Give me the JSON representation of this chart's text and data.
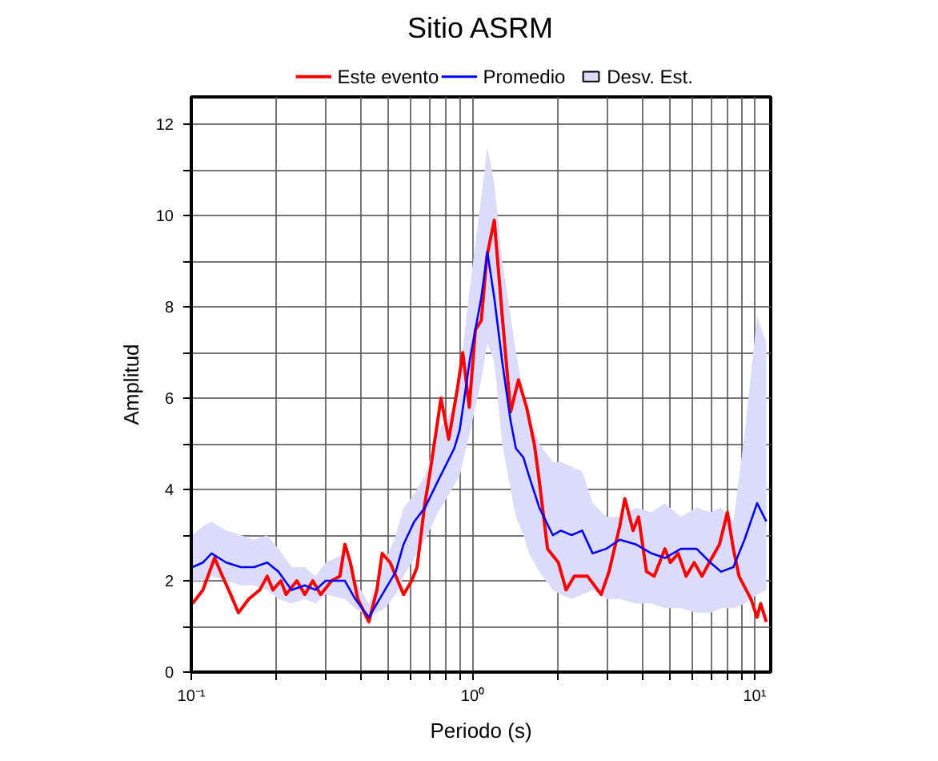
{
  "chart_data": {
    "type": "line",
    "title": "Sitio ASRM",
    "xlabel": "Periodo (s)",
    "ylabel": "Amplitud",
    "log": "x",
    "grid": true,
    "legend": "top",
    "line_style": "solid",
    "marker": "none",
    "xlim": [
      0.1,
      11.4
    ],
    "ylim": [
      0,
      12.6
    ],
    "xticks": [
      {
        "value": 0.1,
        "label": "10⁻¹"
      },
      {
        "value": 0.2,
        "label": null
      },
      {
        "value": 0.3,
        "label": null
      },
      {
        "value": 0.4,
        "label": null
      },
      {
        "value": 0.5,
        "label": null
      },
      {
        "value": 0.6,
        "label": null
      },
      {
        "value": 0.7,
        "label": null
      },
      {
        "value": 0.8,
        "label": null
      },
      {
        "value": 0.9,
        "label": null
      },
      {
        "value": 1,
        "label": "10⁰"
      },
      {
        "value": 2,
        "label": null
      },
      {
        "value": 3,
        "label": null
      },
      {
        "value": 4,
        "label": null
      },
      {
        "value": 5,
        "label": null
      },
      {
        "value": 6,
        "label": null
      },
      {
        "value": 7,
        "label": null
      },
      {
        "value": 8,
        "label": null
      },
      {
        "value": 9,
        "label": null
      },
      {
        "value": 10,
        "label": "10¹"
      }
    ],
    "yticks": [
      0,
      {
        "value": 1,
        "label": null
      },
      2,
      {
        "value": 3,
        "label": null
      },
      4,
      {
        "value": 5,
        "label": null
      },
      6,
      {
        "value": 7,
        "label": null
      },
      8,
      {
        "value": 9,
        "label": null
      },
      10,
      {
        "value": 11,
        "label": null
      },
      12
    ],
    "series": [
      {
        "name": "Este evento",
        "color": "#ff0000",
        "x": [
          0.101,
          0.11,
          0.121,
          0.129,
          0.138,
          0.147,
          0.16,
          0.175,
          0.186,
          0.195,
          0.208,
          0.217,
          0.237,
          0.253,
          0.27,
          0.288,
          0.315,
          0.337,
          0.351,
          0.367,
          0.39,
          0.427,
          0.456,
          0.476,
          0.508,
          0.567,
          0.606,
          0.633,
          0.675,
          0.705,
          0.77,
          0.82,
          0.88,
          0.92,
          0.97,
          1.02,
          1.07,
          1.12,
          1.19,
          1.27,
          1.36,
          1.45,
          1.55,
          1.65,
          1.71,
          1.84,
          2.01,
          2.14,
          2.29,
          2.55,
          2.85,
          3.04,
          3.32,
          3.46,
          3.7,
          3.87,
          4.13,
          4.4,
          4.8,
          5.02,
          5.35,
          5.71,
          6.1,
          6.5,
          6.9,
          7.5,
          8.0,
          8.4,
          8.8,
          9.7,
          10.2,
          10.5,
          11.0
        ],
        "values": [
          1.5,
          1.8,
          2.5,
          2.1,
          1.7,
          1.3,
          1.6,
          1.8,
          2.1,
          1.8,
          2.0,
          1.7,
          2.0,
          1.7,
          2.0,
          1.7,
          2.0,
          2.1,
          2.8,
          2.4,
          1.6,
          1.1,
          1.8,
          2.6,
          2.4,
          1.7,
          2.0,
          2.3,
          3.7,
          4.4,
          6.0,
          5.1,
          6.2,
          7.0,
          5.8,
          7.5,
          7.7,
          9.1,
          9.9,
          7.8,
          5.7,
          6.4,
          5.8,
          5.0,
          4.3,
          2.7,
          2.4,
          1.8,
          2.1,
          2.1,
          1.7,
          2.2,
          3.2,
          3.8,
          3.1,
          3.4,
          2.2,
          2.1,
          2.7,
          2.4,
          2.6,
          2.1,
          2.4,
          2.1,
          2.4,
          2.8,
          3.5,
          2.7,
          2.1,
          1.6,
          1.2,
          1.5,
          1.1
        ]
      },
      {
        "name": "Promedio",
        "color": "#0000ff",
        "x": [
          0.101,
          0.11,
          0.118,
          0.133,
          0.15,
          0.167,
          0.186,
          0.204,
          0.227,
          0.253,
          0.276,
          0.3,
          0.351,
          0.382,
          0.427,
          0.487,
          0.532,
          0.567,
          0.619,
          0.675,
          0.753,
          0.858,
          0.897,
          0.978,
          1.07,
          1.125,
          1.19,
          1.27,
          1.36,
          1.42,
          1.51,
          1.58,
          1.72,
          1.92,
          2.05,
          2.24,
          2.44,
          2.66,
          2.97,
          3.32,
          3.78,
          4.3,
          4.8,
          5.47,
          6.22,
          6.96,
          7.6,
          8.4,
          9.2,
          10.2,
          11.0
        ],
        "values": [
          2.3,
          2.4,
          2.6,
          2.4,
          2.3,
          2.3,
          2.4,
          2.2,
          1.8,
          1.9,
          1.8,
          2.0,
          2.0,
          1.6,
          1.2,
          1.8,
          2.2,
          2.8,
          3.3,
          3.6,
          4.2,
          4.9,
          5.3,
          6.9,
          8.2,
          9.2,
          8.2,
          6.8,
          5.5,
          4.9,
          4.7,
          4.3,
          3.6,
          3.0,
          3.1,
          3.0,
          3.1,
          2.6,
          2.7,
          2.9,
          2.8,
          2.6,
          2.5,
          2.7,
          2.7,
          2.4,
          2.2,
          2.3,
          2.9,
          3.7,
          3.3
        ],
        "lower": [
          2.0,
          2.0,
          2.1,
          2.0,
          1.9,
          1.9,
          1.8,
          1.6,
          1.5,
          1.6,
          1.5,
          1.7,
          1.6,
          1.4,
          1.2,
          1.4,
          1.7,
          2.1,
          2.5,
          2.9,
          3.5,
          4.1,
          4.3,
          5.3,
          6.4,
          7.2,
          6.8,
          5.0,
          4.0,
          3.4,
          3.0,
          2.6,
          2.2,
          1.8,
          1.7,
          1.6,
          1.7,
          1.8,
          1.6,
          1.6,
          1.5,
          1.5,
          1.4,
          1.4,
          1.3,
          1.3,
          1.4,
          1.4,
          1.5,
          1.7,
          1.8
        ],
        "upper": [
          3.0,
          3.2,
          3.3,
          3.1,
          3.0,
          2.9,
          3.0,
          2.7,
          2.3,
          2.3,
          2.1,
          2.4,
          2.6,
          2.0,
          1.5,
          2.4,
          3.0,
          3.6,
          3.9,
          4.3,
          5.3,
          5.8,
          6.5,
          8.5,
          10.4,
          11.5,
          10.7,
          9.0,
          7.8,
          7.0,
          6.1,
          5.6,
          5.0,
          4.6,
          4.6,
          4.5,
          4.4,
          3.7,
          3.4,
          3.4,
          3.6,
          3.5,
          3.7,
          3.4,
          3.6,
          3.5,
          3.6,
          3.3,
          5.2,
          7.8,
          7.2
        ]
      },
      {
        "name": "Desv. Est.",
        "type": "area",
        "color": "#dcdcfa"
      }
    ]
  }
}
